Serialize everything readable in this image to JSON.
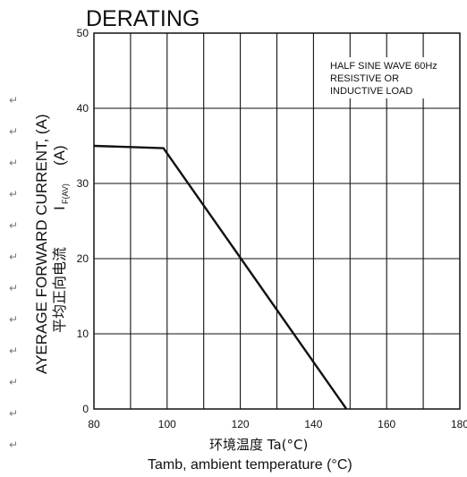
{
  "chart_data": {
    "type": "line",
    "title": "DERATING",
    "ylabel": "AYERAGE FORWARD CURRENT, (A)",
    "ylabel_cn": "平均正向电流",
    "ylabel_symbol": "I",
    "ylabel_symbol_sub": "F(AV)",
    "ylabel_unit": "(A)",
    "xlabel_cn": "环境温度 Ta(°C)",
    "xlabel": "Tamb, ambient temperature (°C)",
    "annotation": [
      "HALF SINE WAVE 60Hz",
      "RESISTIVE OR",
      "INDUCTIVE LOAD"
    ],
    "xlim": [
      80,
      180
    ],
    "ylim": [
      0,
      50
    ],
    "xticks": [
      "80",
      "100",
      "120",
      "140",
      "160",
      "180"
    ],
    "yticks": [
      "0",
      "10",
      "20",
      "30",
      "40",
      "50"
    ],
    "x_grid_step": 10,
    "y_grid_step": 10,
    "grid": true,
    "series": [
      {
        "x": [
          80,
          99,
          149
        ],
        "y": [
          35,
          34.7,
          0
        ]
      }
    ]
  },
  "margin_marks": [
    "↵",
    "↵",
    "↵",
    "↵",
    "↵",
    "↵",
    "↵",
    "↵",
    "↵",
    "↵",
    "↵",
    "↵"
  ]
}
